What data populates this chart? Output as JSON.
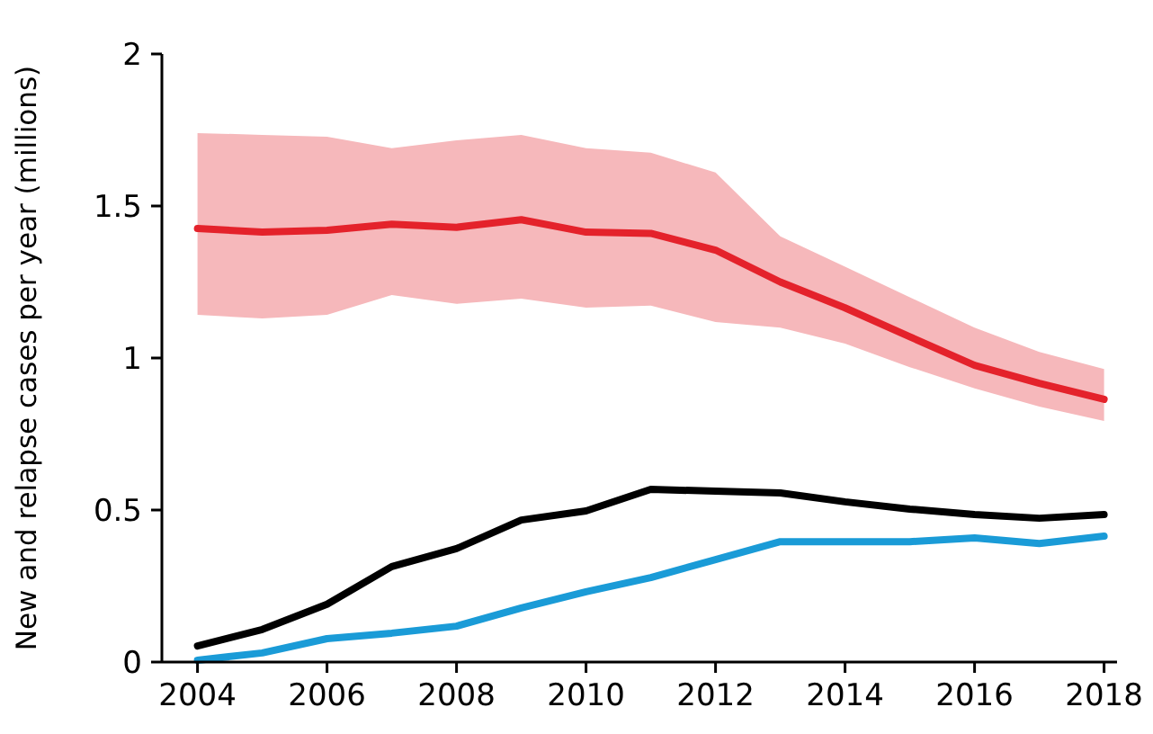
{
  "chart_data": {
    "type": "line",
    "ylabel": "New and relapse cases per year (millions)",
    "x": [
      2004,
      2005,
      2006,
      2007,
      2008,
      2009,
      2010,
      2011,
      2012,
      2013,
      2014,
      2015,
      2016,
      2017,
      2018
    ],
    "xlim": [
      2003.45,
      2018.2
    ],
    "xticks": [
      2004,
      2006,
      2008,
      2010,
      2012,
      2014,
      2016,
      2018
    ],
    "ylim": [
      0,
      2
    ],
    "yticks": [
      0,
      0.5,
      1,
      1.5,
      2
    ],
    "grid": false,
    "marker": "none",
    "line_style": "solid",
    "series": [
      {
        "color": "#e4222b",
        "values": [
          1.426,
          1.414,
          1.42,
          1.44,
          1.43,
          1.455,
          1.414,
          1.41,
          1.355,
          1.25,
          1.165,
          1.07,
          0.976,
          0.917,
          0.864
        ],
        "upper": [
          1.74,
          1.734,
          1.728,
          1.69,
          1.716,
          1.734,
          1.69,
          1.675,
          1.61,
          1.4,
          1.3,
          1.2,
          1.1,
          1.02,
          0.964
        ],
        "lower": [
          1.142,
          1.13,
          1.142,
          1.207,
          1.178,
          1.195,
          1.166,
          1.172,
          1.118,
          1.1,
          1.047,
          0.97,
          0.9,
          0.84,
          0.793
        ]
      },
      {
        "color": "#000000",
        "values": [
          0.053,
          0.107,
          0.19,
          0.314,
          0.373,
          0.467,
          0.497,
          0.568,
          0.562,
          0.556,
          0.527,
          0.503,
          0.485,
          0.473,
          0.485
        ]
      },
      {
        "color": "#1a9bd7",
        "values": [
          0.006,
          0.03,
          0.077,
          0.095,
          0.118,
          0.178,
          0.231,
          0.278,
          0.337,
          0.396,
          0.396,
          0.396,
          0.408,
          0.39,
          0.414
        ]
      }
    ]
  }
}
